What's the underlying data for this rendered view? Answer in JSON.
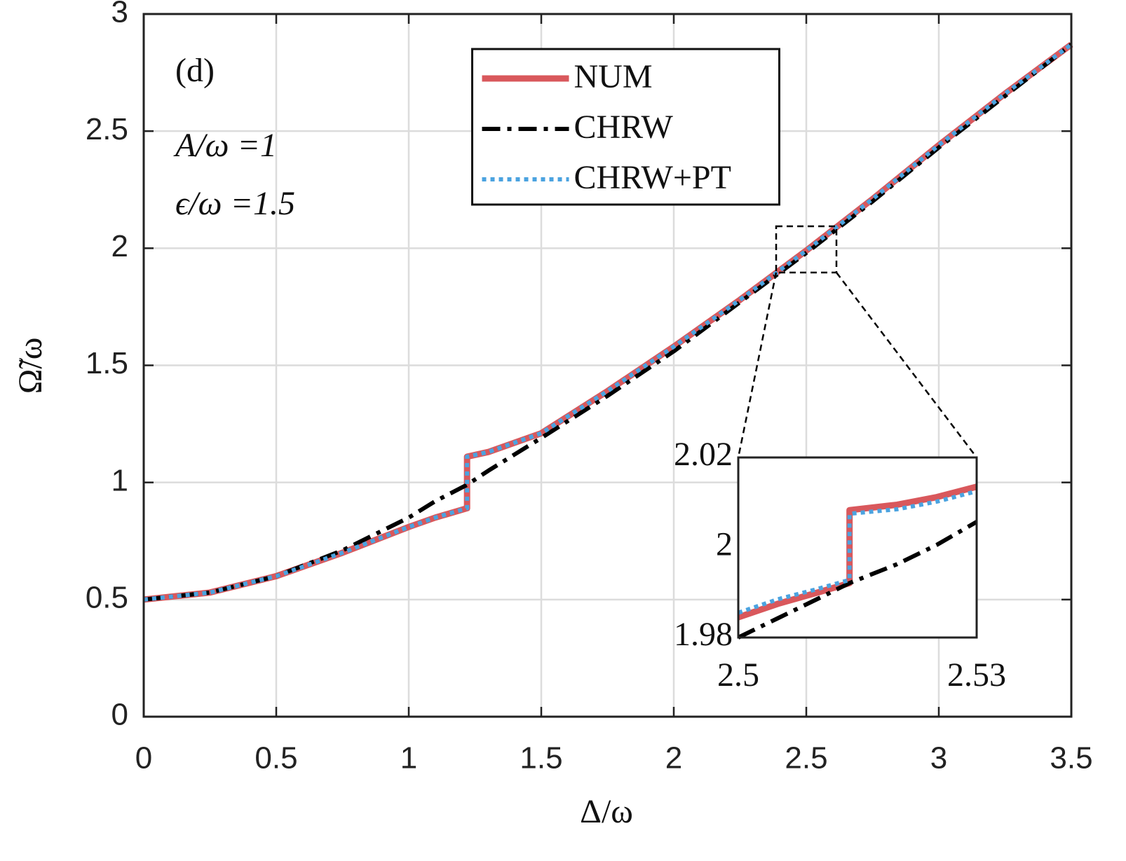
{
  "chart_data": [
    {
      "type": "line",
      "x_label": "Δ/ω",
      "y_label": "Ω̃/ω",
      "annotations": [
        "(d)",
        "A/ω =1",
        "ϵ/ω =1.5"
      ],
      "x": [
        0,
        0.25,
        0.5,
        0.75,
        1,
        1.1,
        1.22,
        1.22,
        1.3,
        1.5,
        1.75,
        2,
        2.25,
        2.5,
        2.75,
        3,
        3.25,
        3.5
      ],
      "series": [
        {
          "name": "NUM",
          "color": "#d9585c",
          "style": "solid",
          "values": [
            0.5,
            0.53,
            0.6,
            0.7,
            0.81,
            0.85,
            0.89,
            1.11,
            1.13,
            1.21,
            1.39,
            1.58,
            1.78,
            1.99,
            2.21,
            2.44,
            2.66,
            2.87
          ]
        },
        {
          "name": "CHRW",
          "color": "#000000",
          "style": "dashdot",
          "values": [
            0.5,
            0.53,
            0.6,
            0.71,
            0.85,
            0.92,
            0.99,
            0.99,
            1.05,
            1.19,
            1.37,
            1.56,
            1.77,
            1.98,
            2.2,
            2.43,
            2.65,
            2.87
          ]
        },
        {
          "name": "CHRW+PT",
          "color": "#4ba3e0",
          "style": "dotted",
          "values": [
            0.5,
            0.53,
            0.6,
            0.7,
            0.81,
            0.85,
            0.89,
            1.11,
            1.13,
            1.21,
            1.39,
            1.58,
            1.78,
            1.99,
            2.21,
            2.44,
            2.66,
            2.87
          ]
        }
      ],
      "xlim": [
        0,
        3.5
      ],
      "xticks": [
        0,
        0.5,
        1,
        1.5,
        2,
        2.5,
        3,
        3.5
      ],
      "ylim": [
        0,
        3
      ],
      "yticks": [
        0,
        0.5,
        1,
        1.5,
        2,
        2.5,
        3
      ],
      "grid": true,
      "legend": "upper center"
    },
    {
      "type": "line",
      "x": [
        2.5,
        2.505,
        2.51,
        2.514,
        2.514,
        2.52,
        2.525,
        2.53
      ],
      "series": [
        {
          "color": "#d9585c",
          "style": "solid",
          "values": [
            1.9845,
            1.9875,
            1.99,
            1.9921,
            2.0083,
            2.0095,
            2.0112,
            2.0135
          ]
        },
        {
          "color": "#000000",
          "style": "dashdot",
          "values": [
            1.98,
            1.9843,
            1.9886,
            1.9921,
            1.9921,
            1.9963,
            2.0006,
            2.0057
          ]
        },
        {
          "color": "#4ba3e0",
          "style": "dotted",
          "values": [
            1.9855,
            1.9885,
            1.9908,
            1.9928,
            2.0075,
            2.0085,
            2.0102,
            2.0125
          ]
        }
      ],
      "xlim": [
        2.5,
        2.53
      ],
      "xticks": [
        2.5,
        2.53
      ],
      "ylim": [
        1.98,
        2.02
      ],
      "yticks": [
        1.98,
        2,
        2.02
      ],
      "grid": false
    }
  ]
}
